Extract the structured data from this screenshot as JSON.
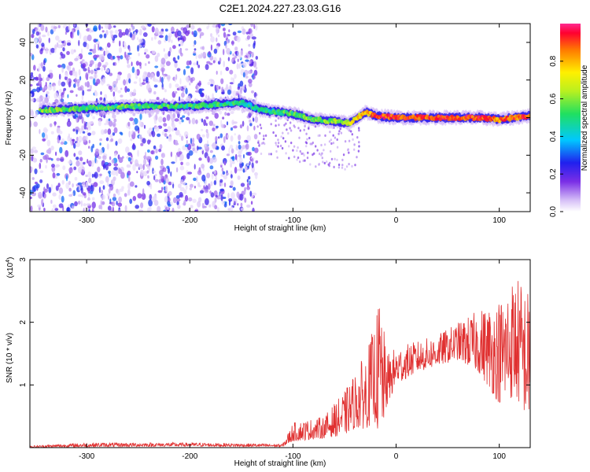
{
  "title": "C2E1.2024.227.23.03.G16",
  "chart_data": [
    {
      "type": "heatmap",
      "xlabel": "Height of straight line (km)",
      "ylabel": "Frequency (Hz)",
      "xlim": [
        -355,
        130
      ],
      "ylim": [
        -50,
        50
      ],
      "x_ticks": [
        -300,
        -200,
        -100,
        0,
        100
      ],
      "y_ticks": [
        -40,
        -20,
        0,
        20,
        40
      ],
      "colorbar": {
        "label": "Normalized spectral amplitude",
        "ticks": [
          0.0,
          0.2,
          0.4,
          0.6,
          0.8
        ],
        "range": [
          0,
          1
        ]
      },
      "ridge": {
        "description": "dominant frequency ridge",
        "x": [
          -340,
          -300,
          -250,
          -200,
          -150,
          -130,
          -100,
          -80,
          -60,
          -45,
          -30,
          -20,
          0,
          20,
          50,
          80,
          100,
          130
        ],
        "freq": [
          4,
          5,
          6,
          6,
          8,
          4,
          2,
          -1,
          -2,
          -3,
          3,
          1,
          0,
          0,
          0,
          0,
          -1,
          1
        ],
        "amplitude": [
          0.6,
          0.5,
          0.55,
          0.5,
          0.5,
          0.45,
          0.55,
          0.55,
          0.6,
          0.65,
          0.8,
          0.9,
          0.9,
          0.9,
          0.9,
          0.9,
          0.85,
          0.9
        ]
      },
      "noise_region_x": [
        -355,
        -135
      ]
    },
    {
      "type": "line",
      "xlabel": "Height of straight line (km)",
      "ylabel": "SNR (10 * v/v)",
      "y_multiplier": "(x10",
      "y_multiplier_exp": "4",
      "y_multiplier_close": ")",
      "xlim": [
        -355,
        130
      ],
      "ylim": [
        0,
        3
      ],
      "x_ticks": [
        -300,
        -200,
        -100,
        0,
        100
      ],
      "y_ticks": [
        1,
        2,
        3
      ],
      "color": "#e03030",
      "envelope": {
        "x": [
          -355,
          -300,
          -200,
          -110,
          -100,
          -70,
          -50,
          -40,
          -30,
          -20,
          -15,
          -10,
          0,
          20,
          40,
          60,
          80,
          100,
          115,
          130
        ],
        "upper": [
          0.03,
          0.08,
          0.08,
          0.06,
          0.4,
          0.5,
          0.9,
          1.2,
          1.5,
          2.0,
          2.6,
          1.5,
          1.6,
          1.7,
          1.8,
          2.0,
          2.2,
          2.4,
          2.8,
          2.5
        ],
        "lower": [
          0.0,
          0.01,
          0.02,
          0.01,
          0.1,
          0.15,
          0.2,
          0.3,
          0.3,
          0.4,
          0.05,
          0.6,
          1.0,
          1.2,
          1.3,
          1.4,
          1.2,
          0.7,
          0.8,
          0.4
        ]
      }
    }
  ]
}
